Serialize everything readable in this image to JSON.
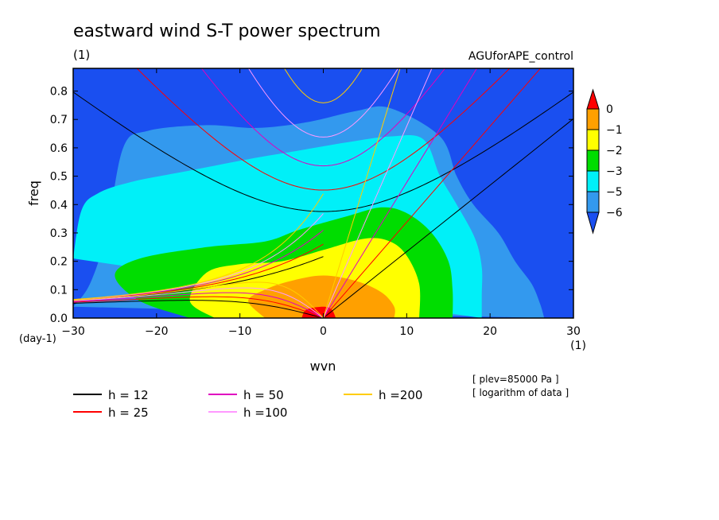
{
  "chart_data": {
    "type": "heatmap",
    "title": "eastward wind S-T power spectrum",
    "subtitle_unit": "(1)",
    "run_label": "AGUforAPE_control",
    "xlabel": "wvn",
    "xunit": "(1)",
    "ylabel": "freq",
    "yunit": "(day-1)",
    "xlim": [
      -30,
      30
    ],
    "ylim": [
      0.0,
      0.88
    ],
    "xticks": [
      -30,
      -20,
      -10,
      0,
      10,
      20,
      30
    ],
    "yticks": [
      0.0,
      0.1,
      0.2,
      0.3,
      0.4,
      0.5,
      0.6,
      0.7,
      0.8
    ],
    "info_lines": [
      "[ plev=85000 Pa ]",
      "[ logarithm of data ]"
    ],
    "colorbar": {
      "levels": [
        "0",
        "−1",
        "−2",
        "−3",
        "−5",
        "−6"
      ],
      "colors": [
        "#1a4ff0",
        "#3399ee",
        "#00f0f8",
        "#00dd00",
        "#ffff00",
        "#ffa000",
        "#ff0000"
      ]
    },
    "contour_levels": [
      {
        "value": -6,
        "color": "#3399ee",
        "points": [
          [
            -30,
            0.04
          ],
          [
            -28,
            0.12
          ],
          [
            -26,
            0.3
          ],
          [
            -24,
            0.6
          ],
          [
            -21,
            0.66
          ],
          [
            -14,
            0.68
          ],
          [
            -8,
            0.67
          ],
          [
            -2,
            0.69
          ],
          [
            4,
            0.73
          ],
          [
            8,
            0.74
          ],
          [
            14,
            0.64
          ],
          [
            16,
            0.5
          ],
          [
            18,
            0.4
          ],
          [
            21,
            0.3
          ],
          [
            23,
            0.2
          ],
          [
            25,
            0.12
          ],
          [
            26,
            0.05
          ],
          [
            26.5,
            0.0
          ]
        ]
      },
      {
        "value": -5,
        "color": "#00f0f8",
        "points": [
          [
            -30,
            0.21
          ],
          [
            -29,
            0.38
          ],
          [
            -27,
            0.44
          ],
          [
            -23,
            0.48
          ],
          [
            -16,
            0.52
          ],
          [
            -9,
            0.56
          ],
          [
            -3,
            0.59
          ],
          [
            3,
            0.62
          ],
          [
            8,
            0.64
          ],
          [
            12,
            0.63
          ],
          [
            14,
            0.5
          ],
          [
            16,
            0.4
          ],
          [
            18.2,
            0.28
          ],
          [
            19,
            0.18
          ],
          [
            19,
            0.08
          ],
          [
            19,
            0.0
          ]
        ]
      },
      {
        "value": -3,
        "color": "#00dd00",
        "points": [
          [
            -16,
            0.0
          ],
          [
            -22,
            0.06
          ],
          [
            -25,
            0.15
          ],
          [
            -22,
            0.21
          ],
          [
            -14,
            0.25
          ],
          [
            -7,
            0.27
          ],
          [
            -3,
            0.31
          ],
          [
            3,
            0.36
          ],
          [
            7,
            0.39
          ],
          [
            10,
            0.37
          ],
          [
            13,
            0.3
          ],
          [
            15,
            0.2
          ],
          [
            15.5,
            0.1
          ],
          [
            15.5,
            0.0
          ]
        ]
      },
      {
        "value": -2,
        "color": "#ffff00",
        "points": [
          [
            -13,
            0.0
          ],
          [
            -16,
            0.06
          ],
          [
            -14,
            0.16
          ],
          [
            -10,
            0.19
          ],
          [
            -5,
            0.2
          ],
          [
            0,
            0.24
          ],
          [
            5,
            0.28
          ],
          [
            8,
            0.27
          ],
          [
            10,
            0.22
          ],
          [
            11.5,
            0.12
          ],
          [
            11.5,
            0.0
          ]
        ]
      },
      {
        "value": -1,
        "color": "#ffa000",
        "points": [
          [
            -7,
            0.0
          ],
          [
            -9,
            0.06
          ],
          [
            -7,
            0.1
          ],
          [
            -4,
            0.13
          ],
          [
            0,
            0.15
          ],
          [
            4,
            0.13
          ],
          [
            7,
            0.09
          ],
          [
            8.5,
            0.04
          ],
          [
            8.5,
            0.0
          ]
        ]
      },
      {
        "value": 0,
        "color": "#ff0000",
        "points": [
          [
            -2.6,
            0.0
          ],
          [
            -2,
            0.03
          ],
          [
            0,
            0.04
          ],
          [
            1,
            0.03
          ],
          [
            1.5,
            0.0
          ]
        ]
      }
    ],
    "legend": [
      {
        "label": "h = 12",
        "color": "#000000"
      },
      {
        "label": "h = 25",
        "color": "#ff0000"
      },
      {
        "label": "h = 50",
        "color": "#e000c0"
      },
      {
        "label": "h =100",
        "color": "#ff99ff"
      },
      {
        "label": "h =200",
        "color": "#ffcc00"
      }
    ],
    "series": [
      {
        "name": "h = 12",
        "color": "#000000",
        "dispersion_h": 12
      },
      {
        "name": "h = 25",
        "color": "#ff0000",
        "dispersion_h": 25
      },
      {
        "name": "h = 50",
        "color": "#e000c0",
        "dispersion_h": 50
      },
      {
        "name": "h =100",
        "color": "#ff99ff",
        "dispersion_h": 100
      },
      {
        "name": "h =200",
        "color": "#ffcc00",
        "dispersion_h": 200
      }
    ]
  }
}
